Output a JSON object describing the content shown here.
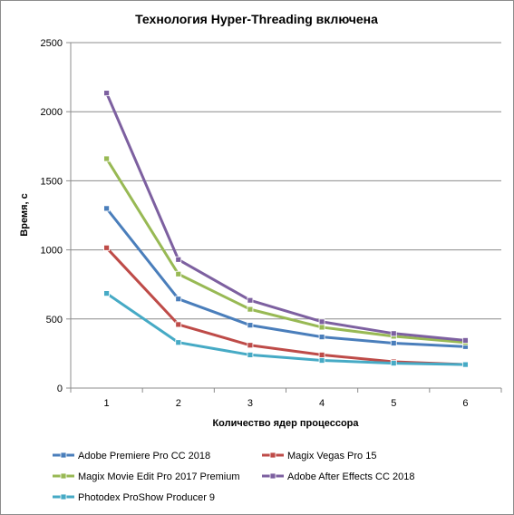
{
  "chart_data": {
    "type": "line",
    "title": "Технология Hyper-Threading включена",
    "xlabel": "Количество  ядер процессора",
    "ylabel": "Время, с",
    "x": [
      1,
      2,
      3,
      4,
      5,
      6
    ],
    "x_tick_labels": [
      "1",
      "2",
      "3",
      "4",
      "5",
      "6"
    ],
    "ylim": [
      0,
      2500
    ],
    "y_ticks": [
      0,
      500,
      1000,
      1500,
      2000,
      2500
    ],
    "y_tick_labels": [
      "0",
      "500",
      "1000",
      "1500",
      "2000",
      "2500"
    ],
    "grid": "horizontal",
    "legend_position": "bottom",
    "series": [
      {
        "name": "Adobe Premiere Pro CC 2018",
        "color": "#4a7ebb",
        "values": [
          1300,
          645,
          455,
          370,
          325,
          300
        ]
      },
      {
        "name": "Magix Vegas Pro 15",
        "color": "#be4b48",
        "values": [
          1015,
          460,
          310,
          240,
          190,
          170
        ]
      },
      {
        "name": "Magix Movie Edit Pro 2017 Premium",
        "color": "#98b954",
        "values": [
          1660,
          825,
          570,
          440,
          375,
          330
        ]
      },
      {
        "name": "Adobe After Effects CC 2018",
        "color": "#7d60a0",
        "values": [
          2135,
          930,
          635,
          480,
          395,
          345
        ]
      },
      {
        "name": "Photodex ProShow Producer 9",
        "color": "#46aac5",
        "values": [
          685,
          330,
          240,
          200,
          180,
          170
        ]
      }
    ]
  }
}
